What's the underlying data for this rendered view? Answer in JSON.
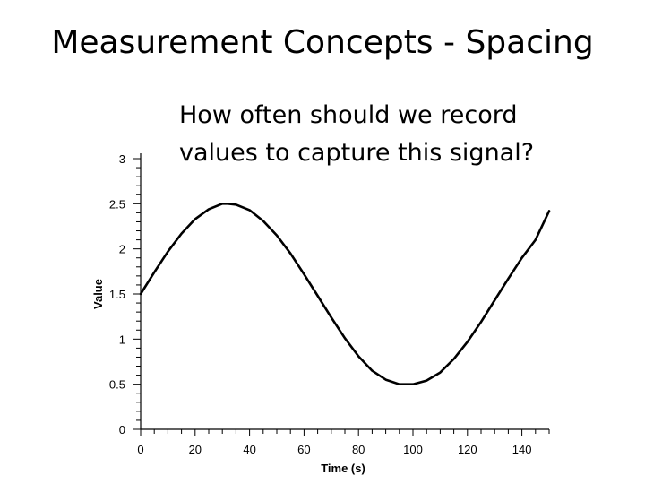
{
  "slide": {
    "title": "Measurement Concepts - Spacing",
    "question_lines": [
      "How often should we record",
      "values to capture this signal?"
    ]
  },
  "chart_data": {
    "type": "line",
    "xlabel": "Time (s)",
    "ylabel": "Value",
    "xlim": [
      0,
      150
    ],
    "ylim": [
      0,
      3
    ],
    "xticks": [
      0,
      20,
      40,
      60,
      80,
      100,
      120,
      140
    ],
    "yticks": [
      0,
      0.5,
      1,
      1.5,
      2,
      2.5,
      3
    ],
    "ytick_labels": [
      "0",
      "0.5",
      "1",
      "1.5",
      "2",
      "2.5",
      "3"
    ],
    "grid": false,
    "series": [
      {
        "color": "#000000",
        "x": [
          0,
          5,
          10,
          15,
          20,
          25,
          30,
          32,
          35,
          40,
          45,
          50,
          55,
          60,
          65,
          70,
          75,
          80,
          85,
          90,
          95,
          100,
          105,
          110,
          115,
          120,
          125,
          130,
          135,
          140,
          145,
          150
        ],
        "y": [
          1.5,
          1.74,
          1.97,
          2.17,
          2.33,
          2.44,
          2.5,
          2.5,
          2.49,
          2.43,
          2.31,
          2.15,
          1.95,
          1.72,
          1.48,
          1.24,
          1.01,
          0.81,
          0.65,
          0.55,
          0.5,
          0.5,
          0.54,
          0.63,
          0.78,
          0.97,
          1.19,
          1.43,
          1.67,
          1.9,
          2.1,
          2.42
        ]
      }
    ]
  }
}
